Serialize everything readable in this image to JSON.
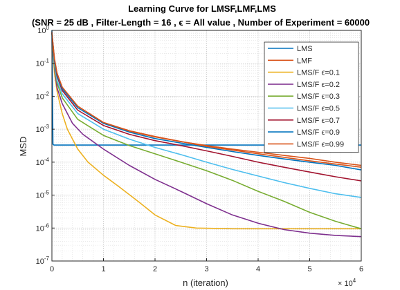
{
  "chart_data": {
    "type": "line",
    "title": "Learning Curve for LMSF,LMF,LMS",
    "subtitle": "(SNR = 25 dB , Filter-Length = 16 , ϵ = All value , Number of Experiment = 60000",
    "xlabel": "n (iteration)",
    "ylabel": "MSD",
    "x_multiplier_label": "× 10",
    "x_multiplier_exponent": "4",
    "x_ticks": [
      "0",
      "1",
      "2",
      "3",
      "4",
      "5",
      "6"
    ],
    "y_ticks": [
      {
        "base": "10",
        "exp": "0"
      },
      {
        "base": "10",
        "exp": "-1"
      },
      {
        "base": "10",
        "exp": "-2"
      },
      {
        "base": "10",
        "exp": "-3"
      },
      {
        "base": "10",
        "exp": "-4"
      },
      {
        "base": "10",
        "exp": "-5"
      },
      {
        "base": "10",
        "exp": "-6"
      },
      {
        "base": "10",
        "exp": "-7"
      }
    ],
    "xlim": [
      0,
      60000
    ],
    "ylim": [
      1e-07,
      1
    ],
    "yscale": "log",
    "grid": true,
    "legend_position": "top-right",
    "series": [
      {
        "name": "LMS",
        "color": "#0072BD",
        "x": [
          0,
          200,
          400,
          800,
          60000
        ],
        "y": [
          1.0,
          0.00035,
          0.00033,
          0.00033,
          0.00033
        ]
      },
      {
        "name": "LMF",
        "color": "#D95319",
        "x": [
          0,
          300,
          1000,
          2000,
          5000,
          10000,
          15000,
          20000,
          30000,
          40000,
          50000,
          60000
        ],
        "y": [
          0.9,
          0.15,
          0.05,
          0.018,
          0.005,
          0.0016,
          0.0009,
          0.0006,
          0.0003,
          0.00018,
          0.00011,
          7e-05
        ]
      },
      {
        "name": "LMS/F ϵ=0.1",
        "color": "#EDB120",
        "x": [
          0,
          500,
          1000,
          2000,
          3000,
          5000,
          7000,
          10000,
          13000,
          17000,
          20000,
          24000,
          28000,
          35000,
          45000,
          60000
        ],
        "y": [
          0.8,
          0.05,
          0.014,
          0.003,
          0.001,
          0.00025,
          0.0001,
          4e-05,
          1.8e-05,
          6e-06,
          2.5e-06,
          1.2e-06,
          1e-06,
          9.5e-07,
          9.5e-07,
          9.5e-07
        ]
      },
      {
        "name": "LMS/F ϵ=0.2",
        "color": "#7E2F8E",
        "x": [
          0,
          500,
          1000,
          2000,
          4000,
          6000,
          10000,
          15000,
          20000,
          25000,
          30000,
          35000,
          40000,
          45000,
          50000,
          55000,
          60000
        ],
        "y": [
          0.85,
          0.07,
          0.018,
          0.006,
          0.0015,
          0.0007,
          0.00025,
          8e-05,
          3e-05,
          1.3e-05,
          5.5e-06,
          2.5e-06,
          1.4e-06,
          9e-07,
          7e-07,
          6e-07,
          5.5e-07
        ]
      },
      {
        "name": "LMS/F ϵ=0.3",
        "color": "#77AC30",
        "x": [
          0,
          500,
          1000,
          2000,
          5000,
          10000,
          15000,
          20000,
          25000,
          30000,
          35000,
          40000,
          45000,
          50000,
          55000,
          60000
        ],
        "y": [
          0.85,
          0.08,
          0.025,
          0.009,
          0.002,
          0.00065,
          0.00032,
          0.00018,
          0.0001,
          5.5e-05,
          2.8e-05,
          1.3e-05,
          6.5e-06,
          3e-06,
          1.6e-06,
          9.5e-07
        ]
      },
      {
        "name": "LMS/F ϵ=0.5",
        "color": "#4DBEEE",
        "x": [
          0,
          500,
          1000,
          2000,
          5000,
          10000,
          15000,
          20000,
          25000,
          30000,
          35000,
          40000,
          45000,
          50000,
          55000,
          60000
        ],
        "y": [
          0.85,
          0.1,
          0.03,
          0.012,
          0.003,
          0.001,
          0.0005,
          0.00028,
          0.00017,
          0.0001,
          6e-05,
          3.8e-05,
          2.4e-05,
          1.6e-05,
          1.1e-05,
          8.5e-06
        ]
      },
      {
        "name": "LMS/F ϵ=0.7",
        "color": "#A2142F",
        "x": [
          0,
          500,
          1000,
          2000,
          5000,
          10000,
          15000,
          20000,
          25000,
          30000,
          35000,
          40000,
          45000,
          50000,
          55000,
          60000
        ],
        "y": [
          0.85,
          0.12,
          0.04,
          0.015,
          0.0038,
          0.0013,
          0.0007,
          0.00045,
          0.00032,
          0.00022,
          0.00015,
          0.0001,
          7e-05,
          5e-05,
          3.6e-05,
          2.7e-05
        ]
      },
      {
        "name": "LMS/F ϵ=0.9",
        "color": "#0072BD",
        "x": [
          0,
          500,
          1000,
          2000,
          5000,
          10000,
          15000,
          20000,
          25000,
          30000,
          35000,
          40000,
          45000,
          50000,
          55000,
          60000
        ],
        "y": [
          0.85,
          0.13,
          0.045,
          0.017,
          0.0045,
          0.0015,
          0.00082,
          0.00052,
          0.00038,
          0.00028,
          0.00021,
          0.00016,
          0.000125,
          0.0001,
          8e-05,
          5.8e-05
        ]
      },
      {
        "name": "LMS/F ϵ=0.99",
        "color": "#D95319",
        "x": [
          0,
          500,
          1000,
          2000,
          5000,
          10000,
          15000,
          20000,
          25000,
          30000,
          35000,
          40000,
          45000,
          50000,
          55000,
          60000
        ],
        "y": [
          0.85,
          0.14,
          0.05,
          0.019,
          0.005,
          0.0016,
          0.00088,
          0.00058,
          0.00042,
          0.00032,
          0.00025,
          0.0002,
          0.00016,
          0.00013,
          0.0001,
          8e-05
        ]
      }
    ]
  }
}
